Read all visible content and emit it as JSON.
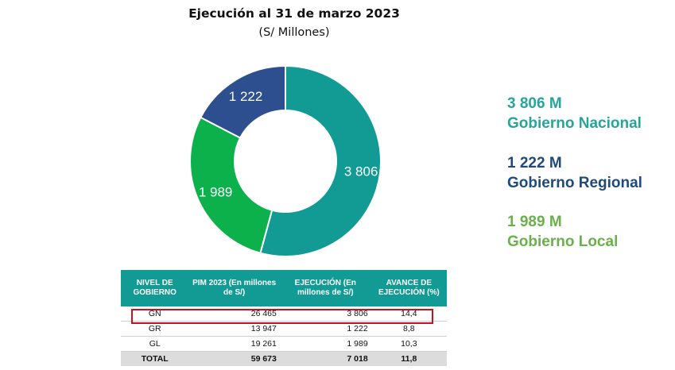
{
  "header": {
    "title": "Ejecución al 31 de marzo 2023",
    "subtitle": "(S/ Millones)"
  },
  "chart_data": {
    "type": "pie",
    "donut": true,
    "title": "Ejecución al 31 de marzo 2023",
    "subtitle": "(S/ Millones)",
    "slices": [
      {
        "name": "Gobierno Nacional",
        "value": 3806,
        "label": "3 806",
        "color": "#119b94"
      },
      {
        "name": "Gobierno Local",
        "value": 1989,
        "label": "1 989",
        "color": "#0db14b"
      },
      {
        "name": "Gobierno Regional",
        "value": 1222,
        "label": "1 222",
        "color": "#2e4f8f"
      }
    ]
  },
  "legend": [
    {
      "value": "3 806 M",
      "name": "Gobierno Nacional",
      "color": "#26a59a"
    },
    {
      "value": "1 222 M",
      "name": "Gobierno Regional",
      "color": "#1f4a7a"
    },
    {
      "value": "1 989 M",
      "name": "Gobierno Local",
      "color": "#6ab04c"
    }
  ],
  "table": {
    "headers": [
      "NIVEL DE GOBIERNO",
      "PIM 2023 (En millones de S/)",
      "EJECUCIÓN (En millones de S/)",
      "AVANCE DE EJECUCIÓN (%)"
    ],
    "rows": [
      {
        "nivel": "GN",
        "pim": "26 465",
        "ejecucion": "3 806",
        "avance": "14,4"
      },
      {
        "nivel": "GR",
        "pim": "13 947",
        "ejecucion": "1 222",
        "avance": "8,8"
      },
      {
        "nivel": "GL",
        "pim": "19 261",
        "ejecucion": "1 989",
        "avance": "10,3"
      },
      {
        "nivel": "TOTAL",
        "pim": "59 673",
        "ejecucion": "7 018",
        "avance": "11,8"
      }
    ],
    "highlight_color": "#c0151d",
    "header_color": "#119b94"
  }
}
